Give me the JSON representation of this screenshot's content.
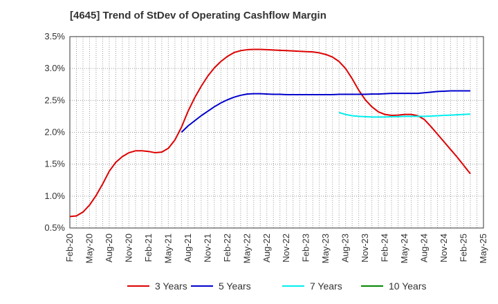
{
  "chart_data": {
    "type": "line",
    "title": "[4645]  Trend of StDev of Operating Cashflow Margin",
    "xlabel": "",
    "ylabel": "",
    "ylim": [
      0.5,
      3.5
    ],
    "y_ticks": [
      "0.5%",
      "1.0%",
      "1.5%",
      "2.0%",
      "2.5%",
      "3.0%",
      "3.5%"
    ],
    "x_ticks": [
      "Feb-20",
      "May-20",
      "Aug-20",
      "Nov-20",
      "Feb-21",
      "May-21",
      "Aug-21",
      "Nov-21",
      "Feb-22",
      "May-22",
      "Aug-22",
      "Nov-22",
      "Feb-23",
      "May-23",
      "Aug-23",
      "Nov-23",
      "Feb-24",
      "May-24",
      "Aug-24",
      "Nov-24",
      "Feb-25",
      "May-25"
    ],
    "grid": true,
    "legend_position": "bottom",
    "x_unit": "month index from Feb-20",
    "series": [
      {
        "name": "3 Years",
        "color": "#dd0000",
        "points": [
          [
            0,
            0.68
          ],
          [
            1,
            0.69
          ],
          [
            2,
            0.75
          ],
          [
            3,
            0.86
          ],
          [
            4,
            1.01
          ],
          [
            5,
            1.19
          ],
          [
            6,
            1.39
          ],
          [
            7,
            1.53
          ],
          [
            8,
            1.62
          ],
          [
            9,
            1.68
          ],
          [
            10,
            1.71
          ],
          [
            11,
            1.71
          ],
          [
            12,
            1.7
          ],
          [
            13,
            1.68
          ],
          [
            14,
            1.69
          ],
          [
            15,
            1.75
          ],
          [
            16,
            1.88
          ],
          [
            17,
            2.08
          ],
          [
            18,
            2.33
          ],
          [
            19,
            2.54
          ],
          [
            20,
            2.72
          ],
          [
            21,
            2.88
          ],
          [
            22,
            3.01
          ],
          [
            23,
            3.11
          ],
          [
            24,
            3.19
          ],
          [
            25,
            3.25
          ],
          [
            26,
            3.28
          ],
          [
            27,
            3.295
          ],
          [
            28,
            3.3
          ],
          [
            29,
            3.3
          ],
          [
            30,
            3.295
          ],
          [
            31,
            3.29
          ],
          [
            32,
            3.285
          ],
          [
            33,
            3.28
          ],
          [
            34,
            3.275
          ],
          [
            35,
            3.27
          ],
          [
            36,
            3.265
          ],
          [
            37,
            3.26
          ],
          [
            38,
            3.245
          ],
          [
            39,
            3.22
          ],
          [
            40,
            3.18
          ],
          [
            41,
            3.11
          ],
          [
            42,
            3.0
          ],
          [
            43,
            2.84
          ],
          [
            44,
            2.66
          ],
          [
            45,
            2.51
          ],
          [
            46,
            2.4
          ],
          [
            47,
            2.32
          ],
          [
            48,
            2.28
          ],
          [
            49,
            2.265
          ],
          [
            50,
            2.27
          ],
          [
            51,
            2.28
          ],
          [
            52,
            2.28
          ],
          [
            53,
            2.26
          ],
          [
            54,
            2.2
          ],
          [
            55,
            2.09
          ],
          [
            56,
            1.97
          ],
          [
            57,
            1.85
          ],
          [
            58,
            1.73
          ],
          [
            59,
            1.61
          ],
          [
            60,
            1.48
          ],
          [
            61,
            1.35
          ]
        ]
      },
      {
        "name": "5 Years",
        "color": "#0000cc",
        "points": [
          [
            17,
            2.0
          ],
          [
            18,
            2.1
          ],
          [
            19,
            2.18
          ],
          [
            20,
            2.26
          ],
          [
            21,
            2.33
          ],
          [
            22,
            2.4
          ],
          [
            23,
            2.46
          ],
          [
            24,
            2.51
          ],
          [
            25,
            2.55
          ],
          [
            26,
            2.58
          ],
          [
            27,
            2.6
          ],
          [
            28,
            2.605
          ],
          [
            29,
            2.605
          ],
          [
            30,
            2.6
          ],
          [
            31,
            2.595
          ],
          [
            32,
            2.595
          ],
          [
            33,
            2.59
          ],
          [
            34,
            2.59
          ],
          [
            35,
            2.59
          ],
          [
            36,
            2.59
          ],
          [
            37,
            2.59
          ],
          [
            38,
            2.59
          ],
          [
            39,
            2.59
          ],
          [
            40,
            2.59
          ],
          [
            41,
            2.595
          ],
          [
            42,
            2.595
          ],
          [
            43,
            2.595
          ],
          [
            44,
            2.595
          ],
          [
            45,
            2.595
          ],
          [
            46,
            2.6
          ],
          [
            47,
            2.6
          ],
          [
            48,
            2.605
          ],
          [
            49,
            2.61
          ],
          [
            50,
            2.61
          ],
          [
            51,
            2.61
          ],
          [
            52,
            2.61
          ],
          [
            53,
            2.61
          ],
          [
            54,
            2.62
          ],
          [
            55,
            2.63
          ],
          [
            56,
            2.64
          ],
          [
            57,
            2.645
          ],
          [
            58,
            2.65
          ],
          [
            59,
            2.65
          ],
          [
            60,
            2.65
          ],
          [
            61,
            2.65
          ]
        ]
      },
      {
        "name": "7 Years",
        "color": "#00eeee",
        "points": [
          [
            41,
            2.31
          ],
          [
            42,
            2.28
          ],
          [
            43,
            2.26
          ],
          [
            44,
            2.25
          ],
          [
            45,
            2.245
          ],
          [
            46,
            2.24
          ],
          [
            47,
            2.24
          ],
          [
            48,
            2.24
          ],
          [
            49,
            2.245
          ],
          [
            50,
            2.245
          ],
          [
            51,
            2.25
          ],
          [
            52,
            2.25
          ],
          [
            53,
            2.25
          ],
          [
            54,
            2.25
          ],
          [
            55,
            2.255
          ],
          [
            56,
            2.26
          ],
          [
            57,
            2.265
          ],
          [
            58,
            2.27
          ],
          [
            59,
            2.275
          ],
          [
            60,
            2.28
          ],
          [
            61,
            2.285
          ]
        ]
      },
      {
        "name": "10 Years",
        "color": "#008800",
        "points": []
      }
    ]
  }
}
